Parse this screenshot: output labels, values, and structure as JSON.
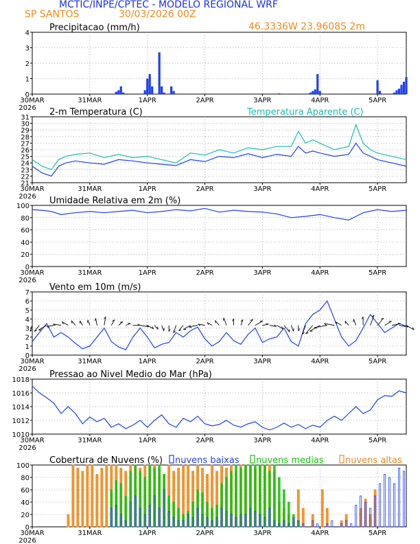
{
  "header": {
    "title": "MCTIC/INPE/CPTEC - MODELO REGIONAL WRF",
    "location": "SP SANTOS",
    "run": "30/03/2026 00Z",
    "coords": "46.3336W  23.9608S  2m"
  },
  "colors": {
    "blue": "#1f3ff0",
    "cyan": "#1bbab0",
    "orange": "#f08a1e",
    "green": "#17c20f",
    "title": "#1a2fe0",
    "grid": "#999999"
  },
  "time_axis": {
    "start_hour": 0,
    "end_hour": 156,
    "tick_labels": [
      "30MAR",
      "31MAR",
      "1APR",
      "2APR",
      "3APR",
      "4APR",
      "5APR"
    ],
    "tick_hours": [
      0,
      24,
      48,
      72,
      96,
      120,
      144
    ],
    "year_label": "2026"
  },
  "chart_data": [
    {
      "type": "bar",
      "title": "Precipitacao (mm/h)",
      "ylim": [
        0,
        4
      ],
      "yticks": [
        "0",
        "1",
        "2",
        "3",
        "4"
      ],
      "x_hours": [
        35,
        36,
        37,
        38,
        47,
        48,
        49,
        50,
        53,
        54,
        55,
        58,
        59,
        103,
        116,
        117,
        118,
        119,
        120,
        144,
        145,
        151,
        152,
        153,
        154,
        155,
        156
      ],
      "values": [
        0.15,
        0.25,
        0.5,
        0.1,
        0.25,
        1.0,
        1.3,
        0.5,
        2.7,
        0.5,
        0.1,
        0.5,
        0.2,
        0.05,
        0.1,
        0.2,
        0.3,
        1.3,
        0.2,
        0.9,
        0.2,
        0.1,
        0.25,
        0.35,
        0.6,
        0.8,
        1.1
      ]
    },
    {
      "type": "line",
      "title": "2-m Temperatura (C)",
      "title2": "Temperatura Aparente (C)",
      "ylim": [
        21,
        31
      ],
      "yticks": [
        "21",
        "22",
        "23",
        "24",
        "25",
        "26",
        "27",
        "28",
        "29",
        "30",
        "31"
      ],
      "series": [
        {
          "name": "2-m Temperatura (C)",
          "x_hours": [
            0,
            4,
            8,
            11,
            14,
            18,
            24,
            30,
            36,
            42,
            48,
            54,
            60,
            66,
            72,
            78,
            84,
            90,
            96,
            102,
            108,
            111,
            114,
            117,
            120,
            126,
            132,
            135,
            138,
            141,
            144,
            150,
            156
          ],
          "values": [
            23.5,
            22.5,
            22.0,
            23.5,
            24.0,
            24.3,
            24.0,
            23.8,
            24.5,
            24.3,
            24.0,
            23.8,
            23.6,
            24.5,
            24.2,
            25.0,
            24.8,
            25.4,
            24.8,
            25.3,
            25.0,
            26.5,
            25.5,
            25.8,
            25.5,
            25.0,
            25.3,
            27.0,
            25.5,
            25.0,
            24.5,
            24.0,
            23.5
          ]
        },
        {
          "name": "Temperatura Aparente (C)",
          "x_hours": [
            0,
            4,
            8,
            11,
            14,
            18,
            24,
            30,
            36,
            42,
            48,
            54,
            60,
            66,
            72,
            78,
            84,
            90,
            96,
            102,
            108,
            111,
            114,
            117,
            120,
            126,
            132,
            135,
            138,
            141,
            144,
            150,
            156
          ],
          "values": [
            24.5,
            23.5,
            23.0,
            24.5,
            25.0,
            25.3,
            25.5,
            24.8,
            25.3,
            24.8,
            25.0,
            24.5,
            24.0,
            25.5,
            25.2,
            26.0,
            25.5,
            26.3,
            26.0,
            26.5,
            26.5,
            28.8,
            27.0,
            27.5,
            27.0,
            26.0,
            26.5,
            29.8,
            27.0,
            26.0,
            25.5,
            25.0,
            24.5
          ]
        }
      ]
    },
    {
      "type": "line",
      "title": "Umidade Relativa em 2m (%)",
      "ylim": [
        0,
        100
      ],
      "yticks": [
        "0",
        "20",
        "40",
        "60",
        "80",
        "100"
      ],
      "x_hours": [
        0,
        4,
        8,
        12,
        18,
        24,
        30,
        36,
        42,
        48,
        54,
        60,
        66,
        72,
        78,
        84,
        90,
        96,
        102,
        108,
        114,
        120,
        126,
        132,
        135,
        138,
        144,
        150,
        156
      ],
      "values": [
        93,
        92,
        90,
        85,
        88,
        90,
        88,
        90,
        92,
        88,
        90,
        93,
        91,
        95,
        89,
        92,
        90,
        89,
        86,
        80,
        82,
        85,
        80,
        76,
        82,
        88,
        93,
        90,
        92
      ]
    },
    {
      "type": "line",
      "title": "Vento em 10m (m/s)",
      "ylim": [
        0,
        7
      ],
      "yticks": [
        "0",
        "1",
        "2",
        "3",
        "4",
        "5",
        "6",
        "7"
      ],
      "x_hours": [
        0,
        3,
        6,
        9,
        12,
        15,
        18,
        21,
        24,
        27,
        30,
        33,
        36,
        39,
        42,
        45,
        48,
        51,
        54,
        57,
        60,
        63,
        66,
        69,
        72,
        75,
        78,
        81,
        84,
        87,
        90,
        93,
        96,
        99,
        102,
        105,
        108,
        111,
        114,
        117,
        120,
        123,
        126,
        129,
        132,
        135,
        138,
        141,
        144,
        147,
        150,
        153,
        156
      ],
      "values": [
        1.5,
        2.5,
        3.5,
        2.0,
        2.5,
        2.0,
        1.3,
        0.7,
        1.0,
        2.0,
        3.0,
        1.5,
        0.9,
        0.6,
        2.0,
        3.0,
        2.0,
        0.8,
        1.2,
        1.4,
        2.5,
        2.0,
        2.7,
        3.1,
        1.8,
        1.0,
        1.5,
        2.5,
        1.6,
        1.2,
        2.3,
        3.0,
        1.4,
        1.8,
        2.0,
        3.0,
        1.5,
        1.0,
        3.5,
        4.5,
        5.0,
        6.0,
        4.0,
        2.0,
        1.0,
        1.6,
        3.0,
        4.5,
        3.5,
        2.5,
        3.0,
        3.5,
        3.2
      ],
      "arrows_dir_deg": [
        200,
        220,
        240,
        260,
        280,
        300,
        320,
        330,
        340,
        350,
        10,
        30,
        50,
        70,
        90,
        100,
        120,
        140,
        160,
        180,
        200,
        220,
        240,
        260,
        280,
        300,
        320,
        340,
        0,
        20,
        40,
        60,
        80,
        100,
        120,
        140,
        160,
        180,
        200,
        220,
        240,
        260,
        280,
        300,
        320,
        340,
        0,
        20,
        40,
        60,
        80,
        100,
        120
      ]
    },
    {
      "type": "line",
      "title": "Pressao ao Nivel Medio do Mar (hPa)",
      "ylim": [
        1010,
        1018
      ],
      "yticks": [
        "1010",
        "1012",
        "1014",
        "1016",
        "1018"
      ],
      "x_hours": [
        0,
        3,
        6,
        9,
        12,
        15,
        18,
        21,
        24,
        27,
        30,
        33,
        36,
        39,
        42,
        45,
        48,
        51,
        54,
        57,
        60,
        63,
        66,
        69,
        72,
        75,
        78,
        81,
        84,
        87,
        90,
        93,
        96,
        99,
        102,
        105,
        108,
        111,
        114,
        117,
        120,
        123,
        126,
        129,
        132,
        135,
        138,
        141,
        144,
        147,
        150,
        153,
        156
      ],
      "values": [
        1017.0,
        1016.0,
        1015.3,
        1014.5,
        1013.0,
        1014.0,
        1013.0,
        1011.5,
        1012.5,
        1011.8,
        1012.3,
        1011.0,
        1011.5,
        1010.8,
        1011.3,
        1012.0,
        1011.0,
        1012.0,
        1012.8,
        1011.5,
        1011.0,
        1012.3,
        1011.8,
        1012.6,
        1011.5,
        1011.2,
        1011.4,
        1012.0,
        1011.3,
        1011.0,
        1011.5,
        1011.8,
        1011.0,
        1010.6,
        1011.0,
        1011.6,
        1011.0,
        1011.4,
        1010.8,
        1011.3,
        1011.0,
        1012.0,
        1012.6,
        1012.0,
        1013.0,
        1014.0,
        1013.0,
        1013.5,
        1015.0,
        1015.6,
        1015.5,
        1016.3,
        1016.0
      ]
    },
    {
      "type": "bar",
      "title": "Cobertura de Nuvens (%)",
      "legend": [
        "nuvens baixas",
        "nuvens medias",
        "nuvens altas"
      ],
      "ylim": [
        0,
        100
      ],
      "yticks": [
        "0",
        "20",
        "40",
        "60",
        "80",
        "100"
      ],
      "series": [
        {
          "name": "nuvens altas",
          "x_hours": [
            15,
            17,
            19,
            21,
            23,
            25,
            27,
            29,
            31,
            33,
            35,
            37,
            39,
            41,
            43,
            45,
            47,
            49,
            51,
            53,
            55,
            57,
            59,
            61,
            63,
            65,
            67,
            69,
            71,
            73,
            75,
            77,
            79,
            81,
            83,
            85,
            87,
            89,
            91,
            93,
            95,
            97,
            99,
            101,
            103,
            105,
            107,
            109,
            111,
            113,
            115,
            117,
            119,
            121,
            123,
            125,
            127,
            129,
            131,
            133,
            135,
            137,
            139,
            141,
            143
          ],
          "values": [
            20,
            100,
            95,
            90,
            100,
            100,
            85,
            95,
            100,
            100,
            100,
            95,
            90,
            100,
            100,
            95,
            100,
            100,
            100,
            95,
            85,
            100,
            90,
            95,
            100,
            100,
            90,
            100,
            95,
            85,
            100,
            90,
            100,
            95,
            100,
            90,
            100,
            100,
            100,
            95,
            100,
            100,
            100,
            90,
            40,
            30,
            20,
            10,
            60,
            30,
            0,
            20,
            0,
            60,
            30,
            0,
            0,
            10,
            20,
            0,
            0,
            30,
            45,
            20,
            60
          ]
        },
        {
          "name": "nuvens medias",
          "x_hours": [
            33,
            35,
            37,
            39,
            41,
            43,
            45,
            47,
            49,
            51,
            53,
            55,
            57,
            59,
            61,
            63,
            65,
            67,
            69,
            71,
            73,
            75,
            77,
            79,
            81,
            83,
            85,
            87,
            89,
            91,
            93,
            95,
            97,
            99,
            101,
            103,
            105,
            107,
            109,
            111
          ],
          "values": [
            60,
            75,
            70,
            50,
            90,
            100,
            90,
            80,
            100,
            95,
            100,
            85,
            50,
            40,
            30,
            20,
            25,
            40,
            60,
            55,
            40,
            30,
            35,
            70,
            80,
            90,
            100,
            95,
            100,
            100,
            100,
            100,
            100,
            90,
            100,
            80,
            60,
            40,
            20,
            10
          ]
        },
        {
          "name": "nuvens baixas",
          "x_hours": [
            33,
            35,
            37,
            39,
            41,
            43,
            45,
            47,
            49,
            51,
            53,
            55,
            57,
            59,
            61,
            63,
            65,
            67,
            69,
            71,
            73,
            75,
            77,
            79,
            81,
            83,
            85,
            87,
            89,
            91,
            93,
            95,
            97,
            99,
            101,
            103,
            105,
            107,
            109,
            111,
            113,
            115,
            117,
            119,
            121,
            123,
            125,
            127,
            129,
            131,
            133,
            135,
            137,
            139,
            141,
            143,
            145,
            147,
            149,
            151,
            153,
            155
          ],
          "values": [
            30,
            35,
            20,
            10,
            40,
            50,
            30,
            20,
            35,
            50,
            30,
            60,
            25,
            15,
            10,
            10,
            20,
            15,
            30,
            20,
            15,
            10,
            15,
            30,
            25,
            20,
            15,
            20,
            20,
            30,
            25,
            20,
            15,
            30,
            10,
            5,
            10,
            5,
            15,
            10,
            5,
            0,
            10,
            5,
            0,
            5,
            10,
            0,
            5,
            10,
            5,
            35,
            50,
            40,
            30,
            50,
            70,
            85,
            80,
            70,
            95,
            90
          ]
        }
      ]
    }
  ]
}
